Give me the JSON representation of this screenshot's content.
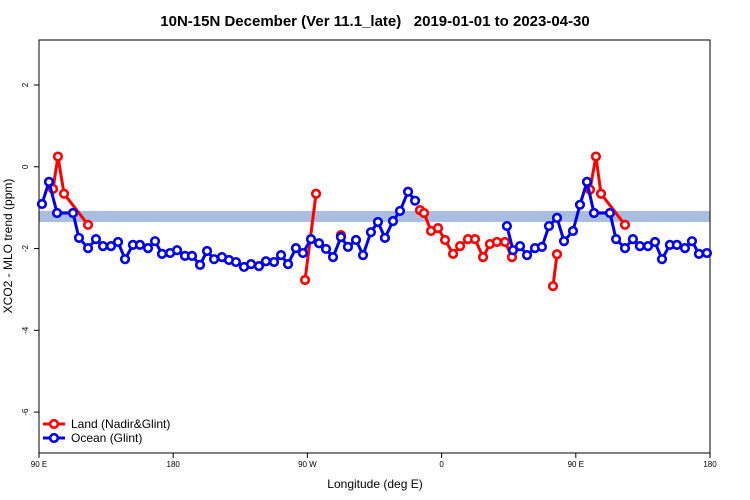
{
  "chart_data": {
    "type": "line",
    "title": "10N-15N December (Ver 11.1_late)   2019-01-01 to 2023-04-30",
    "xlabel": "Longitude (deg E)",
    "ylabel": "XCO2 - MLO trend (ppm)",
    "xlim": [
      90,
      540
    ],
    "xticks": [
      {
        "value": 90,
        "label": "90 E"
      },
      {
        "value": 180,
        "label": "180"
      },
      {
        "value": 270,
        "label": "90 W"
      },
      {
        "value": 360,
        "label": "0"
      },
      {
        "value": 450,
        "label": "90 E"
      },
      {
        "value": 540,
        "label": "180"
      }
    ],
    "ylim": [
      -7,
      3.1
    ],
    "yticks": [
      -6,
      -4,
      -2,
      0,
      2
    ],
    "band": {
      "range": [
        -1.35,
        -1.08
      ],
      "color": "#a8bde0"
    },
    "legend": "bottomleft",
    "series": [
      {
        "name": "Land (Nadir&Glint)",
        "color": "#ff0000",
        "x": [
          99.4,
          102.7,
          106.8,
          122.9,
          null,
          268.4,
          275.8,
          null,
          292.5,
          null,
          345.5,
          348.2,
          352.9,
          357.6,
          362.3,
          367.7,
          372.4,
          377.7,
          382.4,
          387.8,
          392.4,
          397.1,
          402.5,
          407.2,
          null,
          434.7,
          437.4,
          null,
          459.5,
          463.5,
          466.9,
          483.0
        ],
        "values": [
          -0.54,
          0.25,
          -0.66,
          -1.42,
          null,
          -2.77,
          -0.66,
          null,
          -1.67,
          null,
          -1.06,
          -1.13,
          -1.57,
          -1.5,
          -1.79,
          -2.13,
          -1.94,
          -1.77,
          -1.77,
          -2.21,
          -1.89,
          -1.84,
          -1.84,
          -2.21,
          null,
          -2.92,
          -2.14,
          null,
          -0.56,
          0.25,
          -0.66,
          -1.42
        ]
      },
      {
        "name": "Ocean (Glint)",
        "color": "#0000ee",
        "x": [
          92.0,
          96.7,
          102.1,
          112.8,
          116.8,
          122.9,
          128.2,
          132.9,
          138.3,
          143.0,
          147.7,
          153.0,
          157.7,
          163.1,
          167.8,
          172.5,
          177.9,
          182.6,
          187.9,
          192.6,
          198.0,
          202.7,
          207.4,
          212.7,
          217.4,
          222.1,
          227.5,
          232.2,
          237.5,
          242.2,
          247.6,
          252.3,
          257.0,
          262.3,
          267.0,
          272.4,
          277.8,
          282.5,
          287.2,
          292.5,
          297.2,
          302.6,
          307.3,
          312.6,
          317.3,
          322.0,
          327.4,
          332.1,
          337.5,
          342.2,
          null,
          403.8,
          407.9,
          412.6,
          417.3,
          422.6,
          427.3,
          432.0,
          437.4,
          442.1,
          448.1,
          452.8,
          457.5,
          462.2,
          472.9,
          477.0,
          483.0,
          488.3,
          493.0,
          498.4,
          503.1,
          507.8,
          513.1,
          517.8,
          523.2,
          527.9,
          532.6,
          537.9
        ],
        "values": [
          -0.91,
          -0.37,
          -1.13,
          -1.13,
          -1.74,
          -1.99,
          -1.77,
          -1.94,
          -1.94,
          -1.84,
          -2.26,
          -1.91,
          -1.91,
          -1.99,
          -1.82,
          -2.13,
          -2.11,
          -2.04,
          -2.18,
          -2.18,
          -2.4,
          -2.06,
          -2.26,
          -2.21,
          -2.28,
          -2.33,
          -2.45,
          -2.38,
          -2.43,
          -2.31,
          -2.33,
          -2.16,
          -2.38,
          -1.99,
          -2.11,
          -1.77,
          -1.87,
          -2.01,
          -2.21,
          -1.72,
          -1.96,
          -1.79,
          -2.16,
          -1.6,
          -1.35,
          -1.74,
          -1.33,
          -1.08,
          -0.61,
          -0.83,
          null,
          -1.45,
          -2.04,
          -1.94,
          -2.16,
          -1.99,
          -1.96,
          -1.45,
          -1.25,
          -1.82,
          -1.57,
          -0.93,
          -0.37,
          -1.13,
          -1.13,
          -1.77,
          -1.99,
          -1.77,
          -1.94,
          -1.94,
          -1.84,
          -2.26,
          -1.91,
          -1.91,
          -1.99,
          -1.82,
          -2.13,
          -2.11
        ]
      }
    ]
  }
}
